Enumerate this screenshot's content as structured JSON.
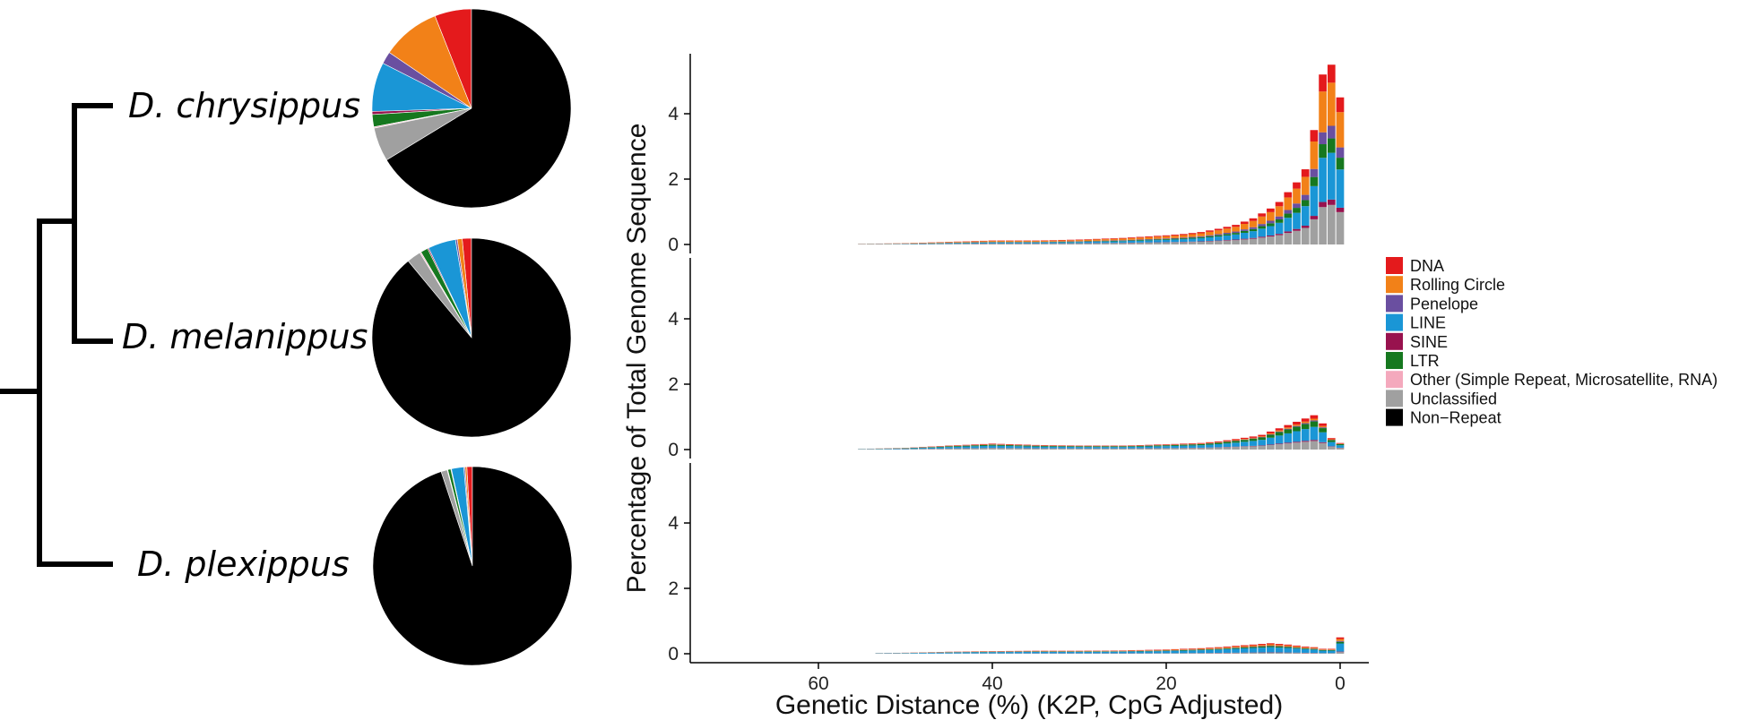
{
  "colors": {
    "DNA": "#e41a1c",
    "Rolling Circle": "#f28118",
    "Penelope": "#6a4fa0",
    "LINE": "#1a96d6",
    "SINE": "#98124e",
    "LTR": "#16781f",
    "Other": "#f4a9bd",
    "Unclassified": "#a0a0a0",
    "Non-Repeat": "#000000"
  },
  "chart_data": [
    {
      "type": "tree",
      "tips": [
        "D. chrysippus",
        "D. melanippus",
        "D. plexippus"
      ],
      "topology": "((D. chrysippus, D. melanippus), D. plexippus)"
    },
    {
      "type": "pie",
      "species": "D. chrysippus",
      "slices": [
        {
          "label": "DNA",
          "value": 6.0
        },
        {
          "label": "Rolling Circle",
          "value": 9.5
        },
        {
          "label": "Penelope",
          "value": 2.0
        },
        {
          "label": "LINE",
          "value": 8.0
        },
        {
          "label": "SINE",
          "value": 0.5
        },
        {
          "label": "LTR",
          "value": 2.0
        },
        {
          "label": "Other (Simple Repeat, Microsatellite, RNA)",
          "value": 0.2
        },
        {
          "label": "Unclassified",
          "value": 5.5
        },
        {
          "label": "Non-Repeat",
          "value": 66.3
        }
      ]
    },
    {
      "type": "pie",
      "species": "D. melanippus",
      "slices": [
        {
          "label": "DNA",
          "value": 1.5
        },
        {
          "label": "Rolling Circle",
          "value": 0.8
        },
        {
          "label": "Penelope",
          "value": 0.3
        },
        {
          "label": "LINE",
          "value": 4.5
        },
        {
          "label": "SINE",
          "value": 0.2
        },
        {
          "label": "LTR",
          "value": 1.2
        },
        {
          "label": "Other (Simple Repeat, Microsatellite, RNA)",
          "value": 0.2
        },
        {
          "label": "Unclassified",
          "value": 2.3
        },
        {
          "label": "Non-Repeat",
          "value": 89.0
        }
      ]
    },
    {
      "type": "pie",
      "species": "D. plexippus",
      "slices": [
        {
          "label": "DNA",
          "value": 0.9
        },
        {
          "label": "Rolling Circle",
          "value": 0.3
        },
        {
          "label": "Penelope",
          "value": 0.2
        },
        {
          "label": "LINE",
          "value": 2.0
        },
        {
          "label": "SINE",
          "value": 0.1
        },
        {
          "label": "LTR",
          "value": 0.5
        },
        {
          "label": "Other (Simple Repeat, Microsatellite, RNA)",
          "value": 0.1
        },
        {
          "label": "Unclassified",
          "value": 1.0
        },
        {
          "label": "Non-Repeat",
          "value": 94.9
        }
      ]
    },
    {
      "type": "bar",
      "stacked": true,
      "xlabel": "Genetic Distance (%) (K2P, CpG Adjusted)",
      "ylabel": "Percentage of Total Genome Sequence",
      "xlim": [
        74,
        -4
      ],
      "x_reversed": true,
      "xticks": [
        "60",
        "40",
        "20",
        "0"
      ],
      "yticks": [
        "0",
        "2",
        "4"
      ],
      "panel_ylim": [
        -0.2,
        5.8
      ],
      "series_names": [
        "Unclassified",
        "SINE",
        "LINE",
        "LTR",
        "Penelope",
        "Rolling Circle",
        "DNA"
      ],
      "legend": {
        "position": "right",
        "entries": [
          {
            "label": "DNA",
            "color": "#e41a1c"
          },
          {
            "label": "Rolling Circle",
            "color": "#f28118"
          },
          {
            "label": "Penelope",
            "color": "#6a4fa0"
          },
          {
            "label": "LINE",
            "color": "#1a96d6"
          },
          {
            "label": "SINE",
            "color": "#98124e"
          },
          {
            "label": "LTR",
            "color": "#16781f"
          },
          {
            "label": "Other (Simple Repeat, Microsatellite, RNA)",
            "color": "#f4a9bd"
          },
          {
            "label": "Unclassified",
            "color": "#a0a0a0"
          },
          {
            "label": "Non−Repeat",
            "color": "#000000"
          }
        ]
      },
      "panels": [
        {
          "species": "D. chrysippus",
          "x": [
            0,
            1,
            2,
            3,
            4,
            5,
            6,
            7,
            8,
            9,
            10,
            12,
            14,
            16,
            18,
            20,
            25,
            30,
            35,
            40,
            45,
            50,
            55
          ],
          "total": [
            4.5,
            5.5,
            5.2,
            3.5,
            2.3,
            1.9,
            1.6,
            1.3,
            1.1,
            0.95,
            0.8,
            0.6,
            0.48,
            0.38,
            0.32,
            0.28,
            0.2,
            0.15,
            0.12,
            0.12,
            0.08,
            0.04,
            0.02
          ],
          "composition": {
            "Unclassified": 0.22,
            "SINE": 0.03,
            "LINE": 0.26,
            "LTR": 0.08,
            "Penelope": 0.07,
            "Rolling Circle": 0.24,
            "DNA": 0.1
          }
        },
        {
          "species": "D. melanippus",
          "x": [
            0,
            1,
            2,
            3,
            4,
            5,
            6,
            7,
            8,
            9,
            10,
            12,
            14,
            16,
            18,
            20,
            25,
            30,
            35,
            40,
            45,
            50,
            55
          ],
          "total": [
            0.2,
            0.35,
            0.8,
            1.05,
            0.95,
            0.85,
            0.75,
            0.65,
            0.55,
            0.45,
            0.4,
            0.32,
            0.25,
            0.2,
            0.18,
            0.16,
            0.12,
            0.12,
            0.14,
            0.18,
            0.12,
            0.05,
            0.02
          ],
          "composition": {
            "Unclassified": 0.25,
            "SINE": 0.03,
            "LINE": 0.38,
            "LTR": 0.16,
            "Penelope": 0.03,
            "Rolling Circle": 0.05,
            "DNA": 0.1
          }
        },
        {
          "species": "D. plexippus",
          "x": [
            0,
            1,
            2,
            3,
            4,
            5,
            6,
            7,
            8,
            9,
            10,
            12,
            14,
            16,
            18,
            20,
            25,
            30,
            35,
            40,
            45,
            50,
            53
          ],
          "total": [
            0.5,
            0.15,
            0.15,
            0.2,
            0.22,
            0.25,
            0.28,
            0.3,
            0.32,
            0.3,
            0.28,
            0.24,
            0.2,
            0.17,
            0.15,
            0.13,
            0.1,
            0.09,
            0.09,
            0.08,
            0.06,
            0.03,
            0.02
          ],
          "composition": {
            "Unclassified": 0.1,
            "SINE": 0.03,
            "LINE": 0.5,
            "LTR": 0.1,
            "Penelope": 0.05,
            "Rolling Circle": 0.12,
            "DNA": 0.1
          }
        }
      ]
    }
  ]
}
